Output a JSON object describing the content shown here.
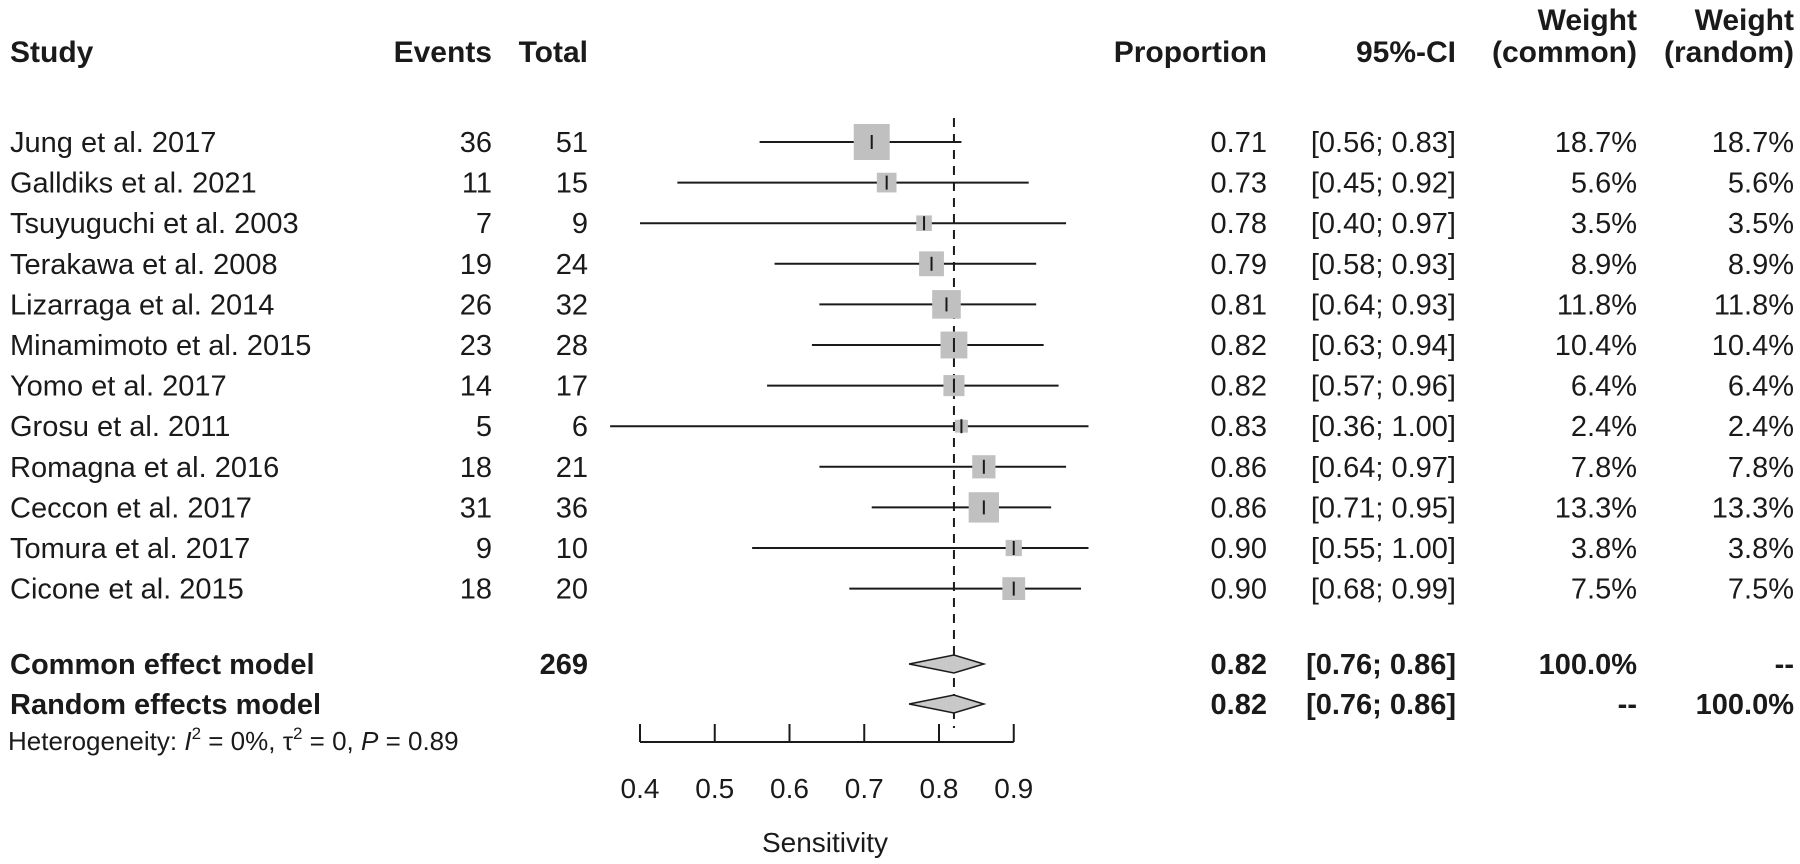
{
  "chart_data": {
    "type": "forest",
    "columns": {
      "study": "Study",
      "events": "Events",
      "total": "Total",
      "proportion": "Proportion",
      "ci": "95%-CI",
      "weight_common_top": "Weight",
      "weight_common_bottom": "(common)",
      "weight_random_top": "Weight",
      "weight_random_bottom": "(random)"
    },
    "studies": [
      {
        "study": "Jung et al. 2017",
        "events": "36",
        "total": "51",
        "prop": 0.71,
        "lo": 0.56,
        "hi": 0.83,
        "prop_text": "0.71",
        "ci_text": "[0.56; 0.83]",
        "w_common": "18.7%",
        "w_random": "18.7%",
        "weight": 18.7
      },
      {
        "study": "Galldiks et al. 2021",
        "events": "11",
        "total": "15",
        "prop": 0.73,
        "lo": 0.45,
        "hi": 0.92,
        "prop_text": "0.73",
        "ci_text": "[0.45; 0.92]",
        "w_common": "5.6%",
        "w_random": "5.6%",
        "weight": 5.6
      },
      {
        "study": "Tsuyuguchi et al. 2003",
        "events": "7",
        "total": "9",
        "prop": 0.78,
        "lo": 0.4,
        "hi": 0.97,
        "prop_text": "0.78",
        "ci_text": "[0.40; 0.97]",
        "w_common": "3.5%",
        "w_random": "3.5%",
        "weight": 3.5
      },
      {
        "study": "Terakawa et al. 2008",
        "events": "19",
        "total": "24",
        "prop": 0.79,
        "lo": 0.58,
        "hi": 0.93,
        "prop_text": "0.79",
        "ci_text": "[0.58; 0.93]",
        "w_common": "8.9%",
        "w_random": "8.9%",
        "weight": 8.9
      },
      {
        "study": "Lizarraga et al. 2014",
        "events": "26",
        "total": "32",
        "prop": 0.81,
        "lo": 0.64,
        "hi": 0.93,
        "prop_text": "0.81",
        "ci_text": "[0.64; 0.93]",
        "w_common": "11.8%",
        "w_random": "11.8%",
        "weight": 11.8
      },
      {
        "study": "Minamimoto et al. 2015",
        "events": "23",
        "total": "28",
        "prop": 0.82,
        "lo": 0.63,
        "hi": 0.94,
        "prop_text": "0.82",
        "ci_text": "[0.63; 0.94]",
        "w_common": "10.4%",
        "w_random": "10.4%",
        "weight": 10.4
      },
      {
        "study": "Yomo et al. 2017",
        "events": "14",
        "total": "17",
        "prop": 0.82,
        "lo": 0.57,
        "hi": 0.96,
        "prop_text": "0.82",
        "ci_text": "[0.57; 0.96]",
        "w_common": "6.4%",
        "w_random": "6.4%",
        "weight": 6.4
      },
      {
        "study": "Grosu et al. 2011",
        "events": "5",
        "total": "6",
        "prop": 0.83,
        "lo": 0.36,
        "hi": 1.0,
        "prop_text": "0.83",
        "ci_text": "[0.36; 1.00]",
        "w_common": "2.4%",
        "w_random": "2.4%",
        "weight": 2.4
      },
      {
        "study": "Romagna et al. 2016",
        "events": "18",
        "total": "21",
        "prop": 0.86,
        "lo": 0.64,
        "hi": 0.97,
        "prop_text": "0.86",
        "ci_text": "[0.64; 0.97]",
        "w_common": "7.8%",
        "w_random": "7.8%",
        "weight": 7.8
      },
      {
        "study": "Ceccon et al. 2017",
        "events": "31",
        "total": "36",
        "prop": 0.86,
        "lo": 0.71,
        "hi": 0.95,
        "prop_text": "0.86",
        "ci_text": "[0.71; 0.95]",
        "w_common": "13.3%",
        "w_random": "13.3%",
        "weight": 13.3
      },
      {
        "study": "Tomura et al. 2017",
        "events": "9",
        "total": "10",
        "prop": 0.9,
        "lo": 0.55,
        "hi": 1.0,
        "prop_text": "0.90",
        "ci_text": "[0.55; 1.00]",
        "w_common": "3.8%",
        "w_random": "3.8%",
        "weight": 3.8
      },
      {
        "study": "Cicone et al. 2015",
        "events": "18",
        "total": "20",
        "prop": 0.9,
        "lo": 0.68,
        "hi": 0.99,
        "prop_text": "0.90",
        "ci_text": "[0.68; 0.99]",
        "w_common": "7.5%",
        "w_random": "7.5%",
        "weight": 7.5
      }
    ],
    "pooled": [
      {
        "label": "Common effect model",
        "total": "269",
        "prop": 0.82,
        "lo": 0.76,
        "hi": 0.86,
        "prop_text": "0.82",
        "ci_text": "[0.76; 0.86]",
        "w_common": "100.0%",
        "w_random": "--"
      },
      {
        "label": "Random effects model",
        "total": "",
        "prop": 0.82,
        "lo": 0.76,
        "hi": 0.86,
        "prop_text": "0.82",
        "ci_text": "[0.76; 0.86]",
        "w_common": "--",
        "w_random": "100.0%"
      }
    ],
    "heterogeneity": {
      "prefix": "Heterogeneity: ",
      "i2": "0%",
      "tau2": "0",
      "p": "0.89"
    },
    "reference_line": 0.82,
    "xaxis": {
      "label": "Sensitivity",
      "ticks": [
        0.4,
        0.5,
        0.6,
        0.7,
        0.8,
        0.9
      ],
      "tick_labels": [
        "0.4",
        "0.5",
        "0.6",
        "0.7",
        "0.8",
        "0.9"
      ],
      "xlim": [
        0.4,
        0.9
      ]
    },
    "colors": {
      "square": "#c0c0c0",
      "diamond": "#c8c8c8",
      "line": "#1a1a1a"
    }
  }
}
